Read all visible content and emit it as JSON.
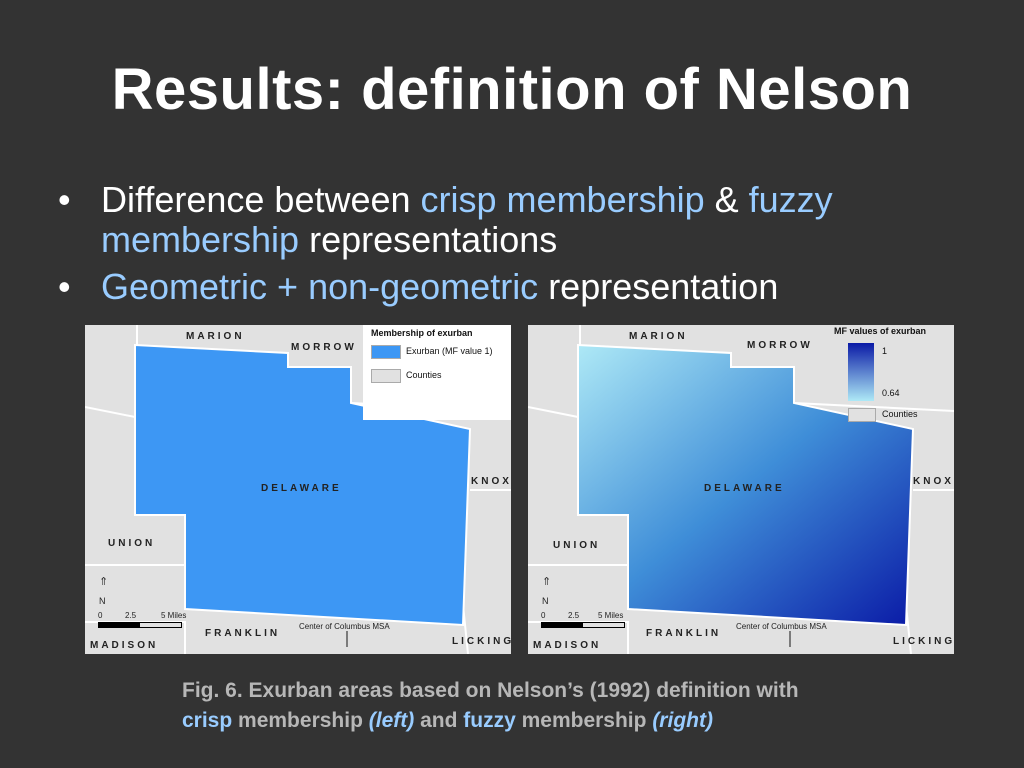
{
  "slide": {
    "title": "Results: definition of Nelson",
    "bullets": [
      {
        "prefix": "Difference between ",
        "hl1": "crisp membership",
        "mid": " & ",
        "hl2": "fuzzy membership",
        "suffix": " representations"
      },
      {
        "hl1": "Geometric + non-geometric",
        "suffix": " representation"
      }
    ],
    "bullet_symbol": "•"
  },
  "maps": {
    "left": {
      "counties": {
        "marion": "MARION",
        "morrow": "MORROW",
        "delaware": "DELAWARE",
        "knox": "KNOX",
        "union": "UNION",
        "franklin": "FRANKLIN",
        "madison": "MADISON",
        "licking": "LICKING"
      },
      "legend": {
        "title": "Membership of exurban",
        "item1": "Exurban (MF value 1)",
        "item2": "Counties"
      },
      "fill_color": "#3d97f4",
      "north": "N",
      "scale": {
        "zero": "0",
        "mid": "2.5",
        "end": "5 Miles"
      },
      "center_label": "Center of Columbus MSA",
      "arrow": "↓"
    },
    "right": {
      "counties": {
        "marion": "MARION",
        "morrow": "MORROW",
        "delaware": "DELAWARE",
        "knox": "KNOX",
        "union": "UNION",
        "franklin": "FRANKLIN",
        "madison": "MADISON",
        "licking": "LICKING"
      },
      "legend": {
        "title": "MF values of exurban",
        "max": "1",
        "min": "0.64",
        "item2": "Counties"
      },
      "gradient": {
        "low": "#aee9f6",
        "mid": "#3f8ed8",
        "high": "#0a1aa6"
      },
      "north": "N",
      "scale": {
        "zero": "0",
        "mid": "2.5",
        "end": "5 Miles"
      },
      "center_label": "Center of Columbus MSA",
      "arrow": "↓"
    }
  },
  "caption": {
    "line1": "Fig. 6. Exurban areas based on Nelson’s (1992) definition with",
    "crisp": "crisp",
    "t1": " membership ",
    "left": "(left)",
    "t2": " and ",
    "fuzzy": "fuzzy",
    "t3": " membership ",
    "right": "(right)"
  }
}
